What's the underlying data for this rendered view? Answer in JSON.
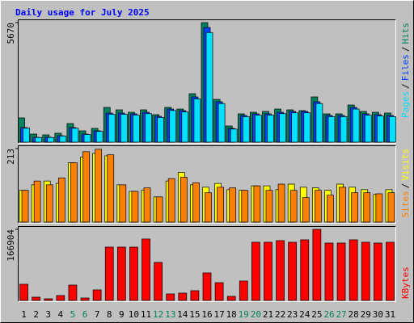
{
  "chart_data": [
    {
      "type": "bar",
      "title": "Daily usage for July 2025",
      "ylim": [
        0,
        5670
      ],
      "yticks": [
        5670
      ],
      "legend": "top",
      "legend_separator": "/",
      "series": [
        {
          "name": "Hits",
          "color": "#00805c",
          "values": [
            1150,
            383,
            345,
            421,
            880,
            536,
            651,
            1647,
            1532,
            1417,
            1532,
            1302,
            1647,
            1570,
            2298,
            5670,
            2030,
            766,
            1341,
            1417,
            1456,
            1570,
            1532,
            1494,
            2145,
            1341,
            1341,
            1762,
            1456,
            1417,
            1379
          ]
        },
        {
          "name": "Files",
          "color": "#0040ff",
          "values": [
            690,
            230,
            230,
            306,
            690,
            383,
            536,
            1379,
            1379,
            1341,
            1417,
            1226,
            1570,
            1494,
            2145,
            5440,
            1915,
            651,
            1264,
            1341,
            1341,
            1417,
            1456,
            1456,
            1915,
            1264,
            1264,
            1647,
            1341,
            1302,
            1264
          ]
        },
        {
          "name": "Pages",
          "color": "#00e0ff",
          "values": [
            660,
            220,
            220,
            290,
            660,
            365,
            510,
            1320,
            1320,
            1280,
            1350,
            1170,
            1500,
            1430,
            2050,
            5200,
            1830,
            620,
            1210,
            1280,
            1280,
            1350,
            1390,
            1390,
            1830,
            1210,
            1210,
            1570,
            1280,
            1240,
            1210
          ]
        }
      ]
    },
    {
      "type": "bar",
      "ylim": [
        0,
        213
      ],
      "yticks": [
        213
      ],
      "legend": "top",
      "legend_separator": "/",
      "series": [
        {
          "name": "Visits",
          "color": "#ffff00",
          "values": [
            92,
            108,
            119,
            112,
            172,
            188,
            199,
            192,
            108,
            89,
            92,
            73,
            119,
            144,
            108,
            101,
            112,
            94,
            92,
            105,
            105,
            94,
            110,
            101,
            99,
            92,
            110,
            101,
            94,
            80,
            94
          ]
        },
        {
          "name": "Sites",
          "color": "#ff8000",
          "values": [
            92,
            119,
            108,
            128,
            172,
            204,
            211,
            195,
            108,
            89,
            99,
            73,
            126,
            130,
            114,
            85,
            101,
            99,
            92,
            105,
            92,
            110,
            92,
            71,
            92,
            78,
            101,
            85,
            85,
            82,
            85
          ]
        }
      ]
    },
    {
      "type": "bar",
      "ylim": [
        0,
        166904
      ],
      "yticks": [
        166904
      ],
      "legend": "bottom",
      "categories": [
        "1",
        "2",
        "3",
        "4",
        "5",
        "6",
        "7",
        "8",
        "9",
        "10",
        "11",
        "12",
        "13",
        "14",
        "15",
        "16",
        "17",
        "18",
        "19",
        "20",
        "21",
        "22",
        "23",
        "24",
        "25",
        "26",
        "27",
        "28",
        "29",
        "30",
        "31"
      ],
      "category_colors": [
        "#000000",
        "#000000",
        "#000000",
        "#000000",
        "#00805c",
        "#00805c",
        "#000000",
        "#000000",
        "#000000",
        "#000000",
        "#000000",
        "#00805c",
        "#00805c",
        "#000000",
        "#000000",
        "#000000",
        "#000000",
        "#000000",
        "#00805c",
        "#00805c",
        "#000000",
        "#000000",
        "#000000",
        "#000000",
        "#000000",
        "#00805c",
        "#00805c",
        "#000000",
        "#000000",
        "#000000",
        "#000000"
      ],
      "series": [
        {
          "name": "KBytes",
          "color": "#ff0000",
          "values": [
            37940,
            7590,
            3800,
            11400,
            36000,
            5700,
            24700,
            125200,
            125200,
            125200,
            144200,
            89200,
            15200,
            17100,
            22800,
            64500,
            41700,
            9500,
            45500,
            136600,
            136600,
            140400,
            136600,
            142300,
            166904,
            134700,
            134700,
            142300,
            136600,
            134700,
            136600
          ]
        }
      ]
    }
  ]
}
